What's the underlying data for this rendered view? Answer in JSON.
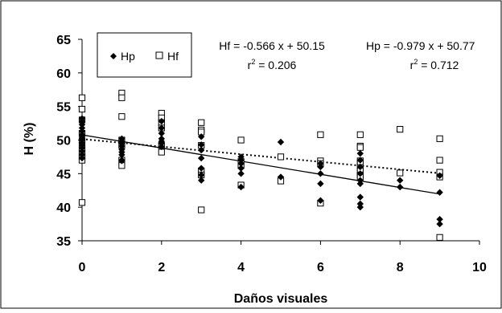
{
  "chart_data": {
    "type": "scatter",
    "title": "",
    "xlabel": "Daños visuales",
    "ylabel": "H (%)",
    "xlim": [
      0,
      10
    ],
    "ylim": [
      35,
      65
    ],
    "x_ticks": [
      0,
      2,
      4,
      6,
      8,
      10
    ],
    "y_ticks": [
      35,
      40,
      45,
      50,
      55,
      60,
      65
    ],
    "x_tick_labels": [
      "0",
      "2",
      "4",
      "6",
      "8",
      "10"
    ],
    "y_tick_labels": [
      "35",
      "40",
      "45",
      "50",
      "55",
      "60",
      "65"
    ],
    "grid": false,
    "legend": {
      "placement": "top-left"
    },
    "series": [
      {
        "name": "Hp",
        "marker": "filled-diamond",
        "color": "#000000",
        "points": [
          [
            0,
            53.2
          ],
          [
            0,
            52.8
          ],
          [
            0,
            52.3
          ],
          [
            0,
            51.8
          ],
          [
            0,
            51.3
          ],
          [
            0,
            50.8
          ],
          [
            0,
            50.4
          ],
          [
            0,
            50.0
          ],
          [
            0,
            49.6
          ],
          [
            0,
            49.2
          ],
          [
            0,
            48.8
          ],
          [
            0,
            48.3
          ],
          [
            0,
            47.8
          ],
          [
            0,
            47.3
          ],
          [
            1,
            50.2
          ],
          [
            1,
            49.8
          ],
          [
            1,
            49.5
          ],
          [
            1,
            49.1
          ],
          [
            1,
            48.6
          ],
          [
            1,
            48.2
          ],
          [
            1,
            47.8
          ],
          [
            1,
            47.0
          ],
          [
            1,
            46.9
          ],
          [
            2,
            52.8
          ],
          [
            2,
            51.8
          ],
          [
            2,
            51.0
          ],
          [
            2,
            50.2
          ],
          [
            2,
            49.8
          ],
          [
            2,
            49.5
          ],
          [
            2,
            49.0
          ],
          [
            3,
            50.5
          ],
          [
            3,
            49.3
          ],
          [
            3,
            48.5
          ],
          [
            3,
            47.3
          ],
          [
            3,
            45.8
          ],
          [
            3,
            44.8
          ],
          [
            3,
            44.0
          ],
          [
            4,
            47.5
          ],
          [
            4,
            47.0
          ],
          [
            4,
            46.5
          ],
          [
            4,
            45.8
          ],
          [
            4,
            45.0
          ],
          [
            4,
            43.0
          ],
          [
            5,
            49.7
          ],
          [
            5,
            44.5
          ],
          [
            6,
            46.5
          ],
          [
            6,
            46.0
          ],
          [
            6,
            45.0
          ],
          [
            6,
            43.5
          ],
          [
            6,
            41.0
          ],
          [
            7,
            48.0
          ],
          [
            7,
            47.0
          ],
          [
            7,
            46.0
          ],
          [
            7,
            45.0
          ],
          [
            7,
            44.0
          ],
          [
            7,
            43.5
          ],
          [
            7,
            41.5
          ],
          [
            7,
            40.5
          ],
          [
            7,
            40.0
          ],
          [
            8,
            44.0
          ],
          [
            8,
            43.0
          ],
          [
            9,
            44.7
          ],
          [
            9,
            42.2
          ],
          [
            9,
            38.2
          ],
          [
            9,
            37.5
          ]
        ],
        "trendline": {
          "equation": "Hp = -0.979 x + 50.77",
          "slope": -0.979,
          "intercept": 50.77,
          "r2_label": "r",
          "r2_exp": "2",
          "r2_value": " = 0.712",
          "style": "solid"
        }
      },
      {
        "name": "Hf",
        "marker": "open-square",
        "color": "#000000",
        "points": [
          [
            0,
            56.3
          ],
          [
            0,
            54.6
          ],
          [
            0,
            53.0
          ],
          [
            0,
            51.0
          ],
          [
            0,
            49.8
          ],
          [
            0,
            48.8
          ],
          [
            0,
            48.0
          ],
          [
            0,
            47.5
          ],
          [
            0,
            47.0
          ],
          [
            0,
            40.7
          ],
          [
            1,
            57.0
          ],
          [
            1,
            56.3
          ],
          [
            1,
            53.5
          ],
          [
            1,
            50.0
          ],
          [
            1,
            49.2
          ],
          [
            1,
            47.0
          ],
          [
            1,
            46.2
          ],
          [
            2,
            54.0
          ],
          [
            2,
            53.3
          ],
          [
            2,
            52.6
          ],
          [
            2,
            51.8
          ],
          [
            2,
            49.2
          ],
          [
            2,
            48.2
          ],
          [
            3,
            52.6
          ],
          [
            3,
            51.5
          ],
          [
            3,
            51.2
          ],
          [
            3,
            49.2
          ],
          [
            3,
            45.4
          ],
          [
            3,
            44.8
          ],
          [
            3,
            39.6
          ],
          [
            4,
            50.0
          ],
          [
            4,
            46.8
          ],
          [
            4,
            46.2
          ],
          [
            4,
            43.3
          ],
          [
            5,
            47.5
          ],
          [
            5,
            43.9
          ],
          [
            6,
            50.8
          ],
          [
            6,
            46.9
          ],
          [
            6,
            46.5
          ],
          [
            6,
            40.6
          ],
          [
            7,
            50.8
          ],
          [
            7,
            49.1
          ],
          [
            7,
            48.9
          ],
          [
            7,
            46.9
          ],
          [
            7,
            46.6
          ],
          [
            7,
            45.9
          ],
          [
            7,
            45.4
          ],
          [
            7,
            44.8
          ],
          [
            7,
            44.5
          ],
          [
            8,
            51.6
          ],
          [
            8,
            45.1
          ],
          [
            9,
            50.2
          ],
          [
            9,
            47.0
          ],
          [
            9,
            45.2
          ],
          [
            9,
            44.5
          ],
          [
            9,
            35.5
          ]
        ],
        "trendline": {
          "equation": "Hf = -0.566 x + 50.15",
          "slope": -0.566,
          "intercept": 50.15,
          "r2_label": "r",
          "r2_exp": "2",
          "r2_value": " = 0.206",
          "style": "dotted"
        }
      }
    ]
  }
}
